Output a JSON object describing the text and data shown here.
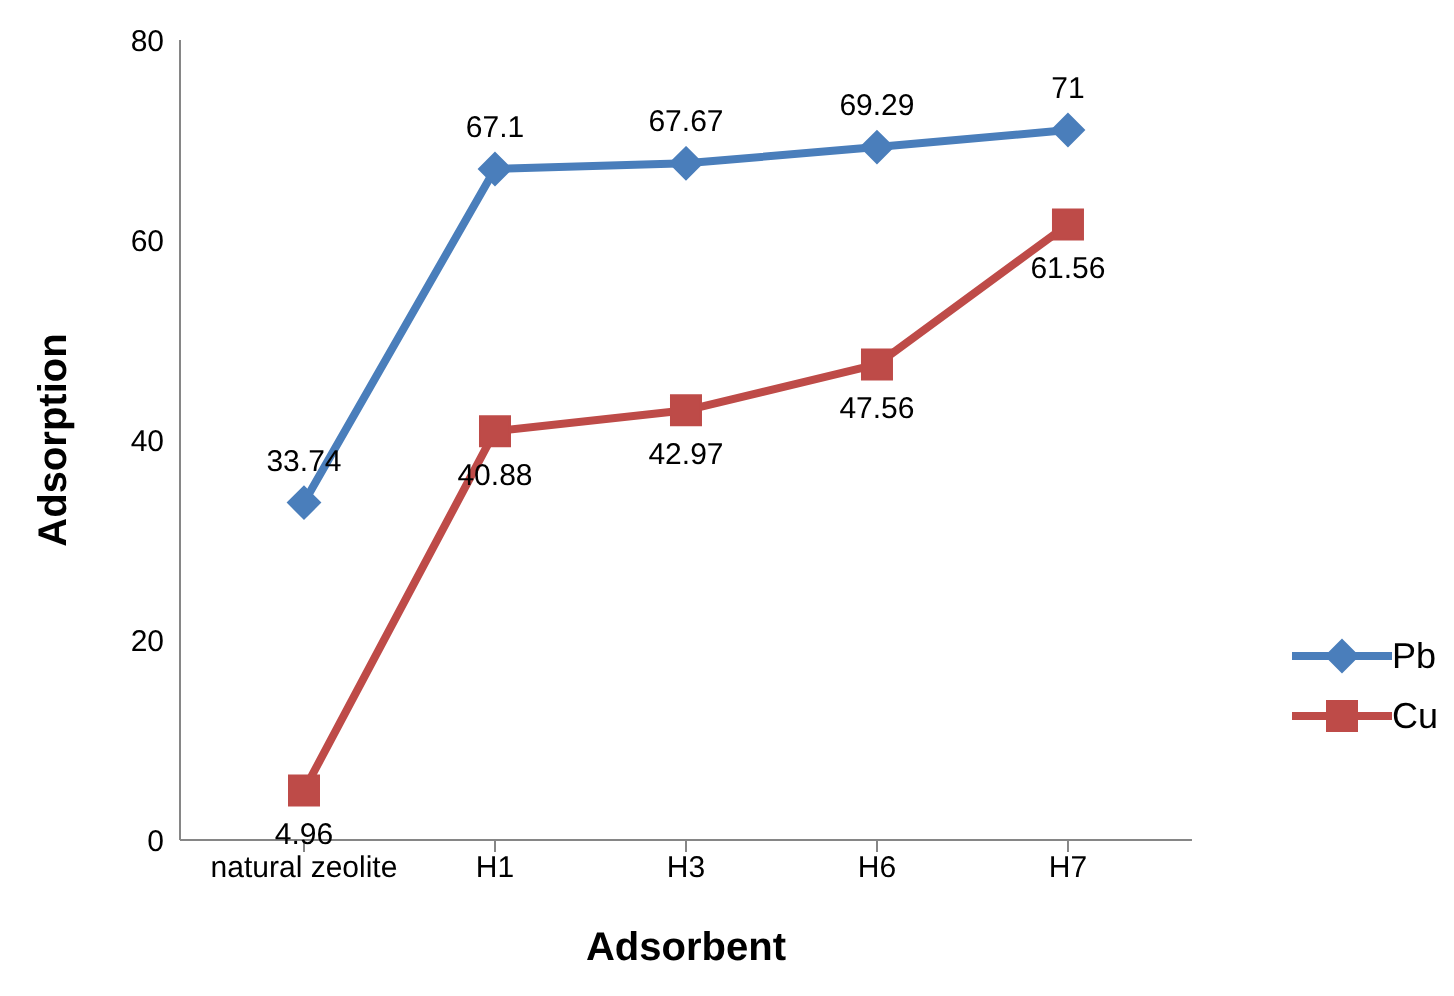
{
  "chart_data": {
    "type": "line",
    "xlabel": "Adsorbent",
    "ylabel": "Adsorption",
    "categories": [
      "natural zeolite",
      "H1",
      "H3",
      "H6",
      "H7"
    ],
    "series": [
      {
        "name": "Pb",
        "color": "#4a7ebb",
        "marker": "diamond",
        "values": [
          33.74,
          67.1,
          67.67,
          69.29,
          71
        ]
      },
      {
        "name": "Cu",
        "color": "#be4b48",
        "marker": "square",
        "values": [
          4.96,
          40.88,
          42.97,
          47.56,
          61.56
        ]
      }
    ],
    "ylim": [
      0,
      80
    ],
    "yticks": [
      0,
      20,
      40,
      60,
      80
    ],
    "grid": false,
    "legend": "right",
    "data_labels": true
  }
}
